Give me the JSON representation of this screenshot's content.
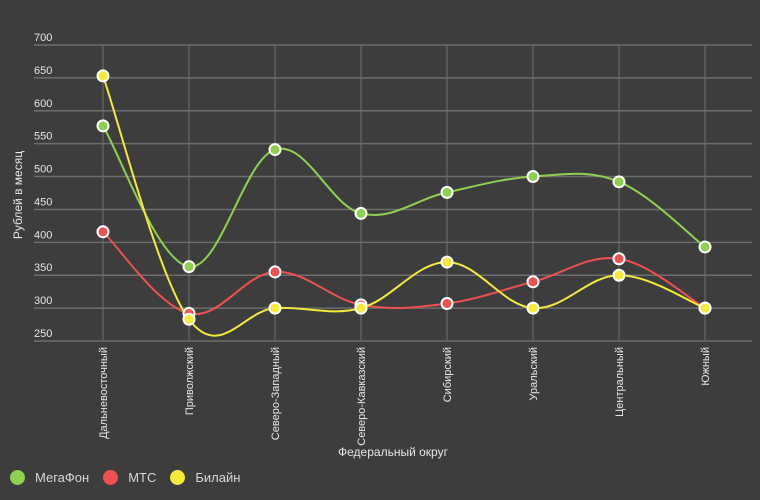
{
  "chart_data": {
    "type": "line",
    "title": "",
    "xlabel": "Федеральный округ",
    "ylabel": "Рублей в месяц",
    "ylim": [
      250,
      700
    ],
    "yticks": [
      250,
      300,
      350,
      400,
      450,
      500,
      550,
      600,
      650,
      700
    ],
    "grid": true,
    "legend_position": "bottom-left",
    "categories": [
      "Дальневосточный",
      "Приволжский",
      "Северо-Западный",
      "Северо-Кавказский",
      "Сибирский",
      "Уральский",
      "Центральный",
      "Южный"
    ],
    "series": [
      {
        "name": "МегаФон",
        "color": "#8fd14f",
        "values": [
          577,
          363,
          541,
          444,
          476,
          500,
          492,
          393
        ]
      },
      {
        "name": "МТС",
        "color": "#f0504f",
        "values": [
          416,
          292,
          355,
          305,
          307,
          340,
          375,
          300
        ]
      },
      {
        "name": "Билайн",
        "color": "#f5ea3a",
        "values": [
          653,
          283,
          300,
          300,
          370,
          300,
          350,
          300
        ]
      }
    ]
  }
}
